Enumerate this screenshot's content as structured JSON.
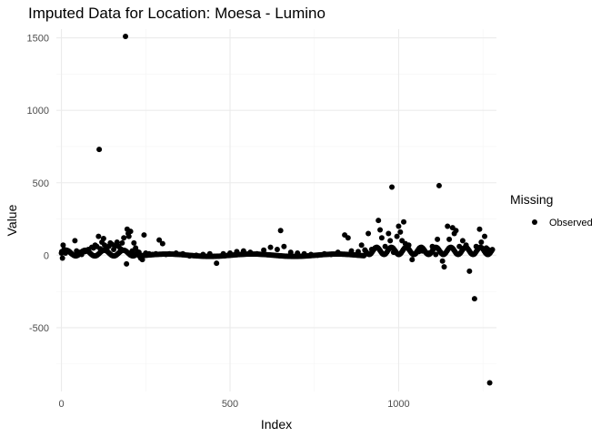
{
  "chart_data": {
    "type": "scatter",
    "title": "Imputed Data for Location: Moesa - Lumino",
    "xlabel": "Index",
    "ylabel": "Value",
    "xlim": [
      -15,
      1290
    ],
    "ylim": [
      -940,
      1560
    ],
    "x_ticks": [
      0,
      500,
      1000
    ],
    "x_tick_labels": [
      "0",
      "500",
      "1000"
    ],
    "y_ticks": [
      -500,
      0,
      500,
      1000,
      1500
    ],
    "y_tick_labels": [
      "-500",
      "0",
      "500",
      "1000",
      "1500"
    ],
    "grid": true,
    "legend": {
      "title": "Missing",
      "position": "right",
      "entries": [
        "Observed"
      ]
    },
    "series": [
      {
        "name": "Observed",
        "color": "#000000",
        "points": [
          [
            1,
            25
          ],
          [
            3,
            -20
          ],
          [
            5,
            70
          ],
          [
            8,
            40
          ],
          [
            12,
            15
          ],
          [
            18,
            30
          ],
          [
            25,
            20
          ],
          [
            30,
            10
          ],
          [
            40,
            100
          ],
          [
            45,
            30
          ],
          [
            55,
            20
          ],
          [
            60,
            5
          ],
          [
            70,
            25
          ],
          [
            80,
            40
          ],
          [
            90,
            55
          ],
          [
            95,
            50
          ],
          [
            100,
            70
          ],
          [
            105,
            60
          ],
          [
            110,
            130
          ],
          [
            112,
            730
          ],
          [
            115,
            45
          ],
          [
            120,
            90
          ],
          [
            125,
            115
          ],
          [
            128,
            70
          ],
          [
            135,
            55
          ],
          [
            140,
            60
          ],
          [
            145,
            85
          ],
          [
            150,
            75
          ],
          [
            155,
            40
          ],
          [
            160,
            65
          ],
          [
            165,
            90
          ],
          [
            170,
            60
          ],
          [
            175,
            45
          ],
          [
            180,
            85
          ],
          [
            185,
            120
          ],
          [
            190,
            1510
          ],
          [
            193,
            -60
          ],
          [
            195,
            180
          ],
          [
            198,
            150
          ],
          [
            200,
            130
          ],
          [
            205,
            165
          ],
          [
            210,
            30
          ],
          [
            215,
            85
          ],
          [
            220,
            50
          ],
          [
            225,
            25
          ],
          [
            230,
            20
          ],
          [
            235,
            -20
          ],
          [
            240,
            -30
          ],
          [
            245,
            140
          ],
          [
            250,
            15
          ],
          [
            260,
            10
          ],
          [
            270,
            5
          ],
          [
            280,
            10
          ],
          [
            290,
            105
          ],
          [
            300,
            80
          ],
          [
            310,
            5
          ],
          [
            320,
            10
          ],
          [
            340,
            15
          ],
          [
            360,
            10
          ],
          [
            380,
            -5
          ],
          [
            400,
            0
          ],
          [
            420,
            5
          ],
          [
            440,
            10
          ],
          [
            460,
            -55
          ],
          [
            480,
            10
          ],
          [
            500,
            15
          ],
          [
            520,
            25
          ],
          [
            540,
            30
          ],
          [
            560,
            20
          ],
          [
            580,
            10
          ],
          [
            600,
            35
          ],
          [
            620,
            55
          ],
          [
            640,
            40
          ],
          [
            650,
            170
          ],
          [
            660,
            60
          ],
          [
            680,
            20
          ],
          [
            700,
            15
          ],
          [
            720,
            10
          ],
          [
            740,
            5
          ],
          [
            760,
            0
          ],
          [
            780,
            10
          ],
          [
            800,
            5
          ],
          [
            820,
            20
          ],
          [
            840,
            140
          ],
          [
            850,
            120
          ],
          [
            860,
            30
          ],
          [
            880,
            25
          ],
          [
            890,
            70
          ],
          [
            900,
            35
          ],
          [
            910,
            150
          ],
          [
            920,
            40
          ],
          [
            940,
            240
          ],
          [
            945,
            175
          ],
          [
            950,
            120
          ],
          [
            960,
            60
          ],
          [
            970,
            150
          ],
          [
            975,
            100
          ],
          [
            980,
            470
          ],
          [
            985,
            20
          ],
          [
            990,
            30
          ],
          [
            995,
            130
          ],
          [
            1000,
            200
          ],
          [
            1005,
            160
          ],
          [
            1010,
            100
          ],
          [
            1015,
            230
          ],
          [
            1020,
            80
          ],
          [
            1030,
            70
          ],
          [
            1040,
            -30
          ],
          [
            1050,
            10
          ],
          [
            1060,
            25
          ],
          [
            1070,
            30
          ],
          [
            1080,
            20
          ],
          [
            1090,
            15
          ],
          [
            1100,
            60
          ],
          [
            1110,
            5
          ],
          [
            1115,
            110
          ],
          [
            1120,
            480
          ],
          [
            1125,
            20
          ],
          [
            1130,
            -40
          ],
          [
            1135,
            -80
          ],
          [
            1145,
            200
          ],
          [
            1150,
            110
          ],
          [
            1160,
            190
          ],
          [
            1165,
            150
          ],
          [
            1170,
            170
          ],
          [
            1180,
            60
          ],
          [
            1190,
            100
          ],
          [
            1200,
            70
          ],
          [
            1210,
            -110
          ],
          [
            1225,
            -300
          ],
          [
            1230,
            60
          ],
          [
            1240,
            180
          ],
          [
            1245,
            90
          ],
          [
            1255,
            130
          ],
          [
            1260,
            50
          ],
          [
            1265,
            40
          ],
          [
            1270,
            20
          ],
          [
            1275,
            30
          ],
          [
            1270,
            -880
          ]
        ]
      }
    ]
  }
}
